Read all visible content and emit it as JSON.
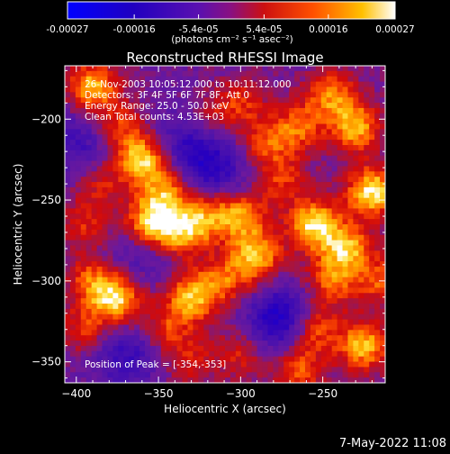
{
  "colorbar": {
    "tick_labels": [
      "-0.00027",
      "-0.00016",
      "-5.4e-05",
      "5.4e-05",
      "0.00016",
      "0.00027"
    ],
    "units": "(photons cm⁻² s⁻¹ asec⁻²)",
    "range": [
      -0.00027,
      0.00027
    ]
  },
  "chart_data": {
    "type": "heatmap",
    "title": "Reconstructed RHESSI Image",
    "xlabel": "Heliocentric X (arcsec)",
    "ylabel": "Heliocentric Y (arcsec)",
    "xlim": [
      -407,
      -212
    ],
    "ylim": [
      -363,
      -167
    ],
    "x_ticks": [
      -400,
      -350,
      -300,
      -250
    ],
    "y_ticks": [
      -350,
      -300,
      -250,
      -200
    ],
    "x_tick_labels": [
      "−400",
      "−350",
      "−300",
      "−250"
    ],
    "y_tick_labels": [
      "−350",
      "−300",
      "−250",
      "−200"
    ],
    "colormap": "rainbow-like: blue-purple to red-orange-yellow-white",
    "peak": {
      "x": -354,
      "y": -353
    },
    "blobs": [
      {
        "x": -390,
        "y": -180,
        "value": 0.00022
      },
      {
        "x": -375,
        "y": -205,
        "value": 0.00014
      },
      {
        "x": -360,
        "y": -225,
        "value": 0.00024
      },
      {
        "x": -345,
        "y": -245,
        "value": 0.00018
      },
      {
        "x": -355,
        "y": -265,
        "value": 0.00027
      },
      {
        "x": -335,
        "y": -270,
        "value": 0.0002
      },
      {
        "x": -320,
        "y": -258,
        "value": 0.00016
      },
      {
        "x": -300,
        "y": -260,
        "value": 0.00019
      },
      {
        "x": -290,
        "y": -285,
        "value": 0.00022
      },
      {
        "x": -310,
        "y": -300,
        "value": 0.00014
      },
      {
        "x": -330,
        "y": -310,
        "value": 0.00021
      },
      {
        "x": -375,
        "y": -312,
        "value": 0.00023
      },
      {
        "x": -390,
        "y": -300,
        "value": 0.00015
      },
      {
        "x": -395,
        "y": -330,
        "value": 0.00012
      },
      {
        "x": -255,
        "y": -265,
        "value": 0.00025
      },
      {
        "x": -235,
        "y": -280,
        "value": 0.0002
      },
      {
        "x": -245,
        "y": -300,
        "value": 0.00015
      },
      {
        "x": -255,
        "y": -330,
        "value": 0.00018
      },
      {
        "x": -225,
        "y": -340,
        "value": 0.00022
      },
      {
        "x": -220,
        "y": -245,
        "value": 0.00026
      },
      {
        "x": -230,
        "y": -205,
        "value": 0.00021
      },
      {
        "x": -245,
        "y": -185,
        "value": 0.00017
      },
      {
        "x": -265,
        "y": -205,
        "value": 0.00015
      },
      {
        "x": -285,
        "y": -215,
        "value": 0.00013
      },
      {
        "x": -300,
        "y": -190,
        "value": 0.00012
      },
      {
        "x": -320,
        "y": -200,
        "value": 0.0001
      },
      {
        "x": -265,
        "y": -355,
        "value": 0.00016
      },
      {
        "x": -300,
        "y": -345,
        "value": 0.00011
      },
      {
        "x": -330,
        "y": -350,
        "value": 9e-05
      },
      {
        "x": -345,
        "y": -330,
        "value": 0.00012
      },
      {
        "x": -215,
        "y": -300,
        "value": 0.00014
      },
      {
        "x": -385,
        "y": -240,
        "value": 0.0001
      },
      {
        "x": -395,
        "y": -265,
        "value": 0.00011
      },
      {
        "x": -275,
        "y": -238,
        "value": 0.00012
      }
    ],
    "cold_spots": [
      {
        "x": -330,
        "y": -215,
        "value": -0.00014
      },
      {
        "x": -315,
        "y": -235,
        "value": -0.00012
      },
      {
        "x": -275,
        "y": -325,
        "value": -0.0002
      },
      {
        "x": -360,
        "y": -280,
        "value": -0.0001
      },
      {
        "x": -395,
        "y": -215,
        "value": -0.00011
      },
      {
        "x": -370,
        "y": -345,
        "value": -0.00012
      }
    ]
  },
  "annotations": {
    "time_range": "26-Nov-2003 10:05:12.000 to 10:11:12.000",
    "detectors": "Detectors: 3F 4F 5F 6F 7F 8F, Att 0",
    "energy": "Energy Range: 25.0 - 50.0 keV",
    "clean": "Clean     Total counts: 4.53E+03",
    "peak": "Position of Peak = [-354,-353]"
  },
  "footer": {
    "date": "7-May-2022 11:08"
  },
  "colors": {
    "background": "#000000",
    "text": "#ffffff"
  }
}
